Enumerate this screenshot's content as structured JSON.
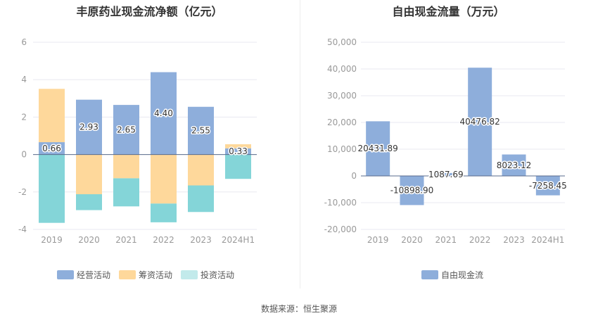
{
  "footer": "数据来源：恒生聚源",
  "colors": {
    "operating": "#8eaedb",
    "financing": "#fed89b",
    "investing": "#84d5d8",
    "investing_legend": "#c2eaeb",
    "free_cash": "#8eaedb",
    "axis_text": "#999999",
    "grid": "#e8e8f0",
    "zero_line": "#5a6b8c"
  },
  "chart_data": [
    {
      "type": "bar",
      "stacked": true,
      "title": "丰原药业现金流净额（亿元）",
      "categories": [
        "2019",
        "2020",
        "2021",
        "2022",
        "2023",
        "2024H1"
      ],
      "ylim": [
        -4,
        6
      ],
      "yticks": [
        "-4",
        "-2",
        "0",
        "2",
        "4",
        "6"
      ],
      "legend_position": "bottom",
      "grid": true,
      "series": [
        {
          "name": "经营活动",
          "values": [
            0.66,
            2.93,
            2.65,
            4.4,
            2.55,
            0.33
          ]
        },
        {
          "name": "筹资活动",
          "values": [
            2.85,
            -2.12,
            -1.27,
            -2.62,
            -1.65,
            0.22
          ]
        },
        {
          "name": "投资活动",
          "values": [
            -3.65,
            -0.85,
            -1.5,
            -1.0,
            -1.42,
            -1.3
          ]
        }
      ],
      "data_labels": [
        "0.66",
        "2.93",
        "2.65",
        "4.40",
        "2.55",
        "0.33"
      ]
    },
    {
      "type": "bar",
      "title": "自由现金流量（万元）",
      "categories": [
        "2019",
        "2020",
        "2021",
        "2022",
        "2023",
        "2024H1"
      ],
      "ylim": [
        -20000,
        50000
      ],
      "yticks": [
        "-20,000",
        "-10,000",
        "0",
        "10,000",
        "20,000",
        "30,000",
        "40,000",
        "50,000"
      ],
      "legend_position": "bottom",
      "grid": true,
      "series": [
        {
          "name": "自由现金流",
          "values": [
            20431.89,
            -10898.9,
            1087.69,
            40476.82,
            8023.12,
            -7258.45
          ]
        }
      ],
      "data_labels": [
        "20431.89",
        "-10898.90",
        "1087.69",
        "40476.82",
        "8023.12",
        "-7258.45"
      ]
    }
  ]
}
